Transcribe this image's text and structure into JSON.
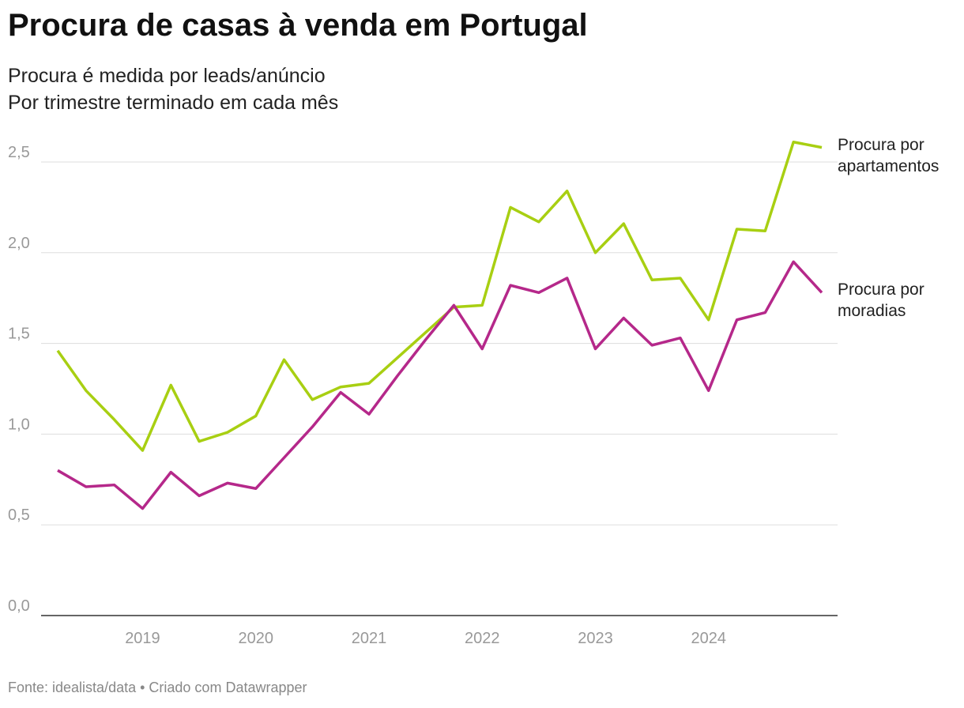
{
  "chart_data": {
    "type": "line",
    "title": "Procura de casas à venda em Portugal",
    "subtitle_lines": [
      "Procura é medida por leads/anúncio",
      "Por trimestre terminado em cada mês"
    ],
    "source": "Fonte: idealista/data • Criado com Datawrapper",
    "x": [
      2018.25,
      2018.5,
      2018.75,
      2019,
      2019.25,
      2019.5,
      2019.75,
      2020,
      2020.25,
      2020.5,
      2020.75,
      2021,
      2021.25,
      2021.5,
      2021.75,
      2022,
      2022.25,
      2022.5,
      2022.75,
      2023,
      2023.25,
      2023.5,
      2023.75,
      2024,
      2024.25,
      2024.5,
      2024.75,
      2025
    ],
    "xlim": [
      2018.25,
      2025
    ],
    "xticks": [
      2019,
      2020,
      2021,
      2022,
      2023,
      2024
    ],
    "ylim": [
      0,
      2.5
    ],
    "yticks": [
      {
        "value": 0,
        "label": "0,0"
      },
      {
        "value": 0.5,
        "label": "0,5"
      },
      {
        "value": 1,
        "label": "1,0"
      },
      {
        "value": 1.5,
        "label": "1,5"
      },
      {
        "value": 2,
        "label": "2,0"
      },
      {
        "value": 2.5,
        "label": "2,5"
      }
    ],
    "grid": true,
    "series": [
      {
        "name": "Procura por apartamentos",
        "color": "#a8cf12",
        "values": [
          1.46,
          1.24,
          1.08,
          0.91,
          1.27,
          0.96,
          1.01,
          1.1,
          1.41,
          1.19,
          1.26,
          1.28,
          1.42,
          1.56,
          1.7,
          1.71,
          2.25,
          2.17,
          2.34,
          2.0,
          2.16,
          1.85,
          1.86,
          1.63,
          2.13,
          2.12,
          2.61,
          2.58
        ]
      },
      {
        "name": "Procura por moradias",
        "color": "#b5288a",
        "values": [
          0.8,
          0.71,
          0.72,
          0.59,
          0.79,
          0.66,
          0.73,
          0.7,
          0.87,
          1.04,
          1.23,
          1.11,
          1.32,
          1.52,
          1.71,
          1.47,
          1.82,
          1.78,
          1.86,
          1.47,
          1.64,
          1.49,
          1.53,
          1.24,
          1.63,
          1.67,
          1.95,
          1.78
        ]
      }
    ]
  }
}
